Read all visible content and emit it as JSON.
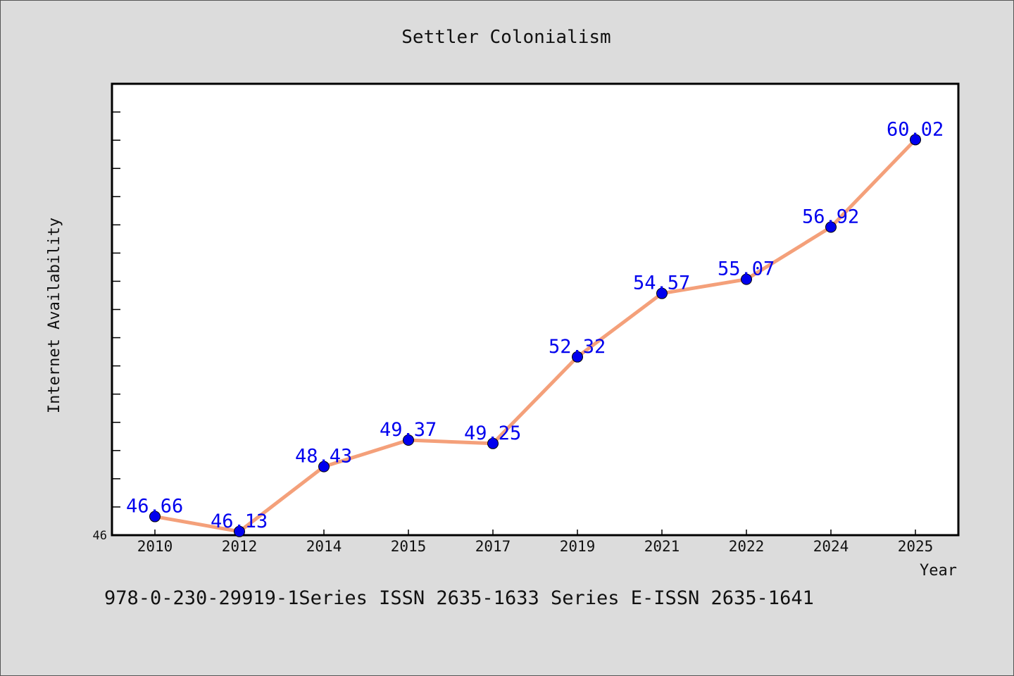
{
  "chart_data": {
    "type": "line",
    "title": "Settler Colonialism",
    "xlabel": "Year",
    "ylabel": "Internet Availability",
    "categories": [
      "2010",
      "2012",
      "2014",
      "2015",
      "2017",
      "2019",
      "2021",
      "2022",
      "2024",
      "2025"
    ],
    "series": [
      {
        "values": [
          46.66,
          46.13,
          48.43,
          49.37,
          49.25,
          52.32,
          54.57,
          55.07,
          56.92,
          60.02
        ],
        "labels": [
          "46.66",
          "46.13",
          "48.43",
          "49.37",
          "49.25",
          "52.32",
          "54.57",
          "55.07",
          "56.92",
          "60.02"
        ]
      }
    ],
    "ylim": [
      46,
      62
    ],
    "yticks_labeled": [
      "46"
    ],
    "grid": false,
    "legend": "none",
    "colors": {
      "line": "#f4a07a",
      "marker": "#0000ee",
      "data_label": "#0000ee",
      "background": "#dcdcdc",
      "plot_background": "#ffffff"
    }
  },
  "footer": {
    "text": "978-0-230-29919-1Series ISSN 2635-1633 Series E-ISSN 2635-1641"
  }
}
